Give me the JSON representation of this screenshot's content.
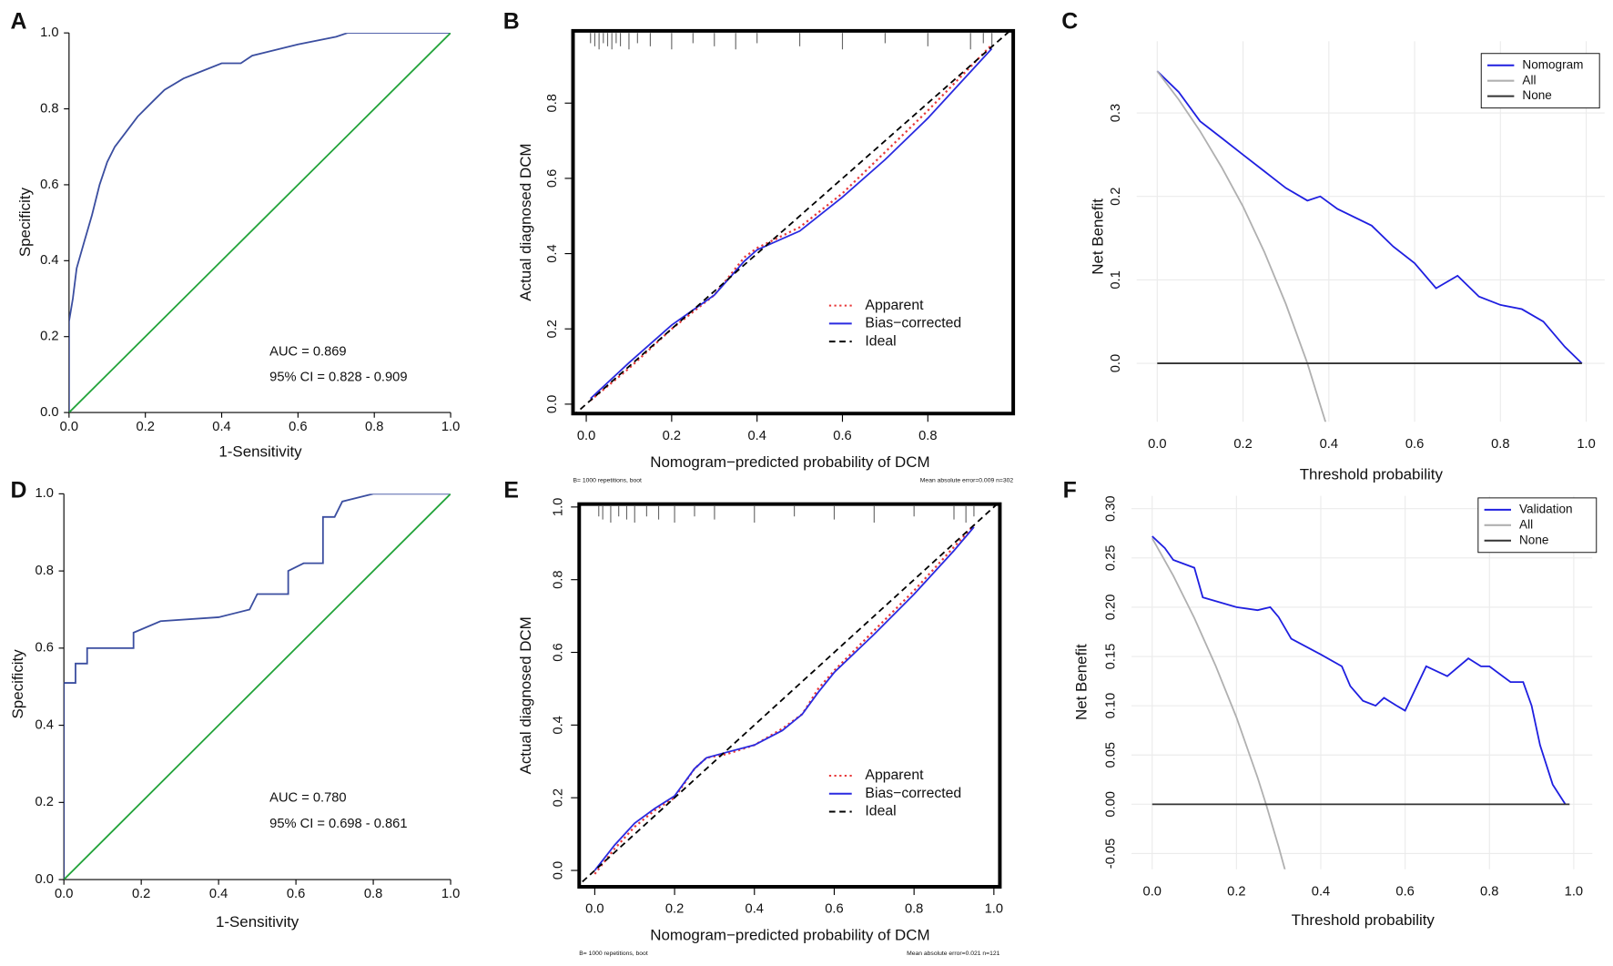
{
  "chart_data": [
    {
      "type": "roc",
      "label": "A",
      "x_label": "1-Sensitivity",
      "y_label": "Specificity",
      "annotations": [
        "AUC = 0.869",
        "95% CI = 0.828 - 0.909"
      ],
      "xlim": [
        0,
        1
      ],
      "ylim": [
        0,
        1
      ],
      "xticks": [
        {
          "value": 0,
          "label": "0.0"
        },
        0.2,
        0.4,
        0.6,
        0.8,
        {
          "value": 1,
          "label": "1.0"
        }
      ],
      "yticks": [
        {
          "value": 0,
          "label": "0.0"
        },
        0.2,
        0.4,
        0.6,
        0.8,
        {
          "value": 1,
          "label": "1.0"
        }
      ],
      "series": [
        {
          "color": "#3b4ea0",
          "style": "solid",
          "x": [
            0,
            0,
            0.01,
            0.02,
            0.04,
            0.06,
            0.08,
            0.1,
            0.12,
            0.15,
            0.18,
            0.22,
            0.25,
            0.3,
            0.35,
            0.4,
            0.45,
            0.48,
            0.52,
            0.6,
            0.7,
            0.73,
            1
          ],
          "values": [
            0,
            0.24,
            0.3,
            0.38,
            0.45,
            0.52,
            0.6,
            0.66,
            0.7,
            0.74,
            0.78,
            0.82,
            0.85,
            0.88,
            0.9,
            0.92,
            0.92,
            0.94,
            0.95,
            0.97,
            0.99,
            1,
            1
          ]
        },
        {
          "color": "#22a33a",
          "style": "solid",
          "x": [
            0,
            1
          ],
          "values": [
            0,
            1
          ]
        }
      ]
    },
    {
      "type": "calibration",
      "label": "B",
      "x_label": "Nomogram−predicted probability of DCM",
      "y_label": "Actual diagnosed DCM",
      "notes": [
        "B= 1000 repetitions, boot",
        "Mean absolute error=0.009 n=302"
      ],
      "xlim": [
        -0.031,
        1.0
      ],
      "ylim": [
        -0.025,
        0.992
      ],
      "xticks": [
        {
          "value": 0,
          "label": "0.0"
        },
        0.2,
        0.4,
        0.6,
        0.8
      ],
      "yticks": [
        {
          "value": 0,
          "label": "0.0"
        },
        0.2,
        0.4,
        0.6,
        0.8
      ],
      "rug": [
        0.01,
        0.02,
        0.03,
        0.04,
        0.05,
        0.06,
        0.07,
        0.08,
        0.1,
        0.12,
        0.15,
        0.2,
        0.25,
        0.3,
        0.35,
        0.4,
        0.5,
        0.6,
        0.7,
        0.8,
        0.9,
        0.93,
        0.95
      ],
      "series": [
        {
          "name": "Apparent",
          "color": "#e8393a",
          "style": "dotted",
          "x": [
            0.01,
            0.1,
            0.2,
            0.3,
            0.37,
            0.4,
            0.5,
            0.6,
            0.7,
            0.8,
            0.95
          ],
          "values": [
            0.01,
            0.095,
            0.2,
            0.29,
            0.39,
            0.415,
            0.47,
            0.56,
            0.67,
            0.78,
            0.955
          ]
        },
        {
          "name": "Bias−corrected",
          "color": "#2a2ae0",
          "style": "solid",
          "x": [
            0.01,
            0.1,
            0.2,
            0.3,
            0.37,
            0.4,
            0.5,
            0.6,
            0.7,
            0.8,
            0.95
          ],
          "values": [
            0.015,
            0.11,
            0.21,
            0.29,
            0.38,
            0.41,
            0.46,
            0.55,
            0.65,
            0.76,
            0.945
          ]
        },
        {
          "name": "Ideal",
          "color": "#000000",
          "style": "dashed",
          "x": [
            -0.05,
            1
          ],
          "values": [
            -0.05,
            1
          ]
        }
      ]
    },
    {
      "type": "decision",
      "label": "C",
      "x_label": "Threshold probability",
      "y_label": "Net Benefit",
      "grid": true,
      "legend": "top-right",
      "xlim": [
        -0.048,
        1.043
      ],
      "ylim": [
        -0.07,
        0.386
      ],
      "xticks": [
        {
          "value": 0,
          "label": "0.0"
        },
        0.2,
        0.4,
        0.6,
        0.8,
        {
          "value": 1,
          "label": "1.0"
        }
      ],
      "yticks": [
        {
          "value": 0,
          "label": "0.0"
        },
        0.1,
        0.2,
        0.3
      ],
      "series": [
        {
          "name": "Nomogram",
          "color": "#1f1fe0",
          "style": "solid",
          "x": [
            0,
            0.05,
            0.1,
            0.15,
            0.2,
            0.25,
            0.3,
            0.35,
            0.38,
            0.42,
            0.5,
            0.55,
            0.6,
            0.65,
            0.7,
            0.75,
            0.8,
            0.85,
            0.9,
            0.95,
            0.99
          ],
          "values": [
            0.35,
            0.325,
            0.29,
            0.27,
            0.25,
            0.23,
            0.21,
            0.195,
            0.2,
            0.185,
            0.165,
            0.14,
            0.12,
            0.09,
            0.105,
            0.08,
            0.07,
            0.065,
            0.05,
            0.02,
            0
          ]
        },
        {
          "name": "All",
          "color": "#b0b0b0",
          "style": "solid",
          "x": [
            0,
            0.05,
            0.1,
            0.15,
            0.2,
            0.25,
            0.3,
            0.35,
            0.4
          ],
          "values": [
            0.35,
            0.316,
            0.278,
            0.235,
            0.188,
            0.133,
            0.071,
            0,
            -0.083
          ]
        },
        {
          "name": "None",
          "color": "#333333",
          "style": "solid",
          "x": [
            0,
            0.99
          ],
          "values": [
            0,
            0
          ]
        }
      ]
    },
    {
      "type": "roc",
      "label": "D",
      "x_label": "1-Sensitivity",
      "y_label": "Specificity",
      "annotations": [
        "AUC = 0.780",
        "95% CI = 0.698 - 0.861"
      ],
      "xlim": [
        0,
        1
      ],
      "ylim": [
        0,
        1
      ],
      "xticks": [
        {
          "value": 0,
          "label": "0.0"
        },
        0.2,
        0.4,
        0.6,
        0.8,
        {
          "value": 1,
          "label": "1.0"
        }
      ],
      "yticks": [
        {
          "value": 0,
          "label": "0.0"
        },
        0.2,
        0.4,
        0.6,
        0.8,
        {
          "value": 1,
          "label": "1.0"
        }
      ],
      "series": [
        {
          "color": "#3b4ea0",
          "style": "solid",
          "x": [
            0,
            0,
            0.03,
            0.03,
            0.06,
            0.06,
            0.18,
            0.18,
            0.25,
            0.4,
            0.48,
            0.5,
            0.58,
            0.58,
            0.62,
            0.67,
            0.67,
            0.7,
            0.72,
            0.8,
            1
          ],
          "values": [
            0,
            0.51,
            0.51,
            0.56,
            0.56,
            0.6,
            0.6,
            0.64,
            0.67,
            0.68,
            0.7,
            0.74,
            0.74,
            0.8,
            0.82,
            0.82,
            0.94,
            0.94,
            0.98,
            1,
            1
          ]
        },
        {
          "color": "#22a33a",
          "style": "solid",
          "x": [
            0,
            1
          ],
          "values": [
            0,
            1
          ]
        }
      ]
    },
    {
      "type": "calibration",
      "label": "E",
      "x_label": "Nomogram−predicted probability of DCM",
      "y_label": "Actual diagnosed DCM",
      "notes": [
        "B= 1000 repetitions, boot",
        "Mean absolute error=0.021 n=121"
      ],
      "xlim": [
        -0.039,
        1.015
      ],
      "ylim": [
        -0.045,
        1.008
      ],
      "xticks": [
        {
          "value": 0,
          "label": "0.0"
        },
        0.2,
        0.4,
        0.6,
        0.8,
        {
          "value": 1,
          "label": "1.0"
        }
      ],
      "yticks": [
        {
          "value": 0,
          "label": "0.0"
        },
        0.2,
        0.4,
        0.6,
        0.8,
        {
          "value": 1,
          "label": "1.0"
        }
      ],
      "rug": [
        0.01,
        0.02,
        0.04,
        0.06,
        0.08,
        0.1,
        0.13,
        0.16,
        0.2,
        0.25,
        0.3,
        0.4,
        0.5,
        0.6,
        0.7,
        0.8,
        0.9,
        0.93,
        0.95
      ],
      "series": [
        {
          "name": "Apparent",
          "color": "#e8393a",
          "style": "dotted",
          "x": [
            0,
            0.05,
            0.1,
            0.15,
            0.2,
            0.25,
            0.28,
            0.33,
            0.4,
            0.47,
            0.52,
            0.56,
            0.6,
            0.7,
            0.8,
            0.9,
            0.95
          ],
          "values": [
            -0.01,
            0.06,
            0.12,
            0.165,
            0.2,
            0.28,
            0.31,
            0.32,
            0.345,
            0.39,
            0.43,
            0.5,
            0.55,
            0.66,
            0.77,
            0.89,
            0.95
          ]
        },
        {
          "name": "Bias−corrected",
          "color": "#2a2ae0",
          "style": "solid",
          "x": [
            0,
            0.05,
            0.1,
            0.15,
            0.2,
            0.25,
            0.28,
            0.33,
            0.4,
            0.47,
            0.52,
            0.56,
            0.6,
            0.7,
            0.8,
            0.9,
            0.95
          ],
          "values": [
            0,
            0.07,
            0.13,
            0.17,
            0.205,
            0.28,
            0.31,
            0.325,
            0.345,
            0.385,
            0.43,
            0.49,
            0.545,
            0.65,
            0.76,
            0.88,
            0.945
          ]
        },
        {
          "name": "Ideal",
          "color": "#000000",
          "style": "dashed",
          "x": [
            -0.05,
            1.02
          ],
          "values": [
            -0.05,
            1.02
          ]
        }
      ]
    },
    {
      "type": "decision",
      "label": "F",
      "x_label": "Threshold probability",
      "y_label": "Net Benefit",
      "grid": true,
      "legend": "top-right",
      "xlim": [
        -0.049,
        1.044
      ],
      "ylim": [
        -0.066,
        0.313
      ],
      "xticks": [
        {
          "value": 0,
          "label": "0.0"
        },
        0.2,
        0.4,
        0.6,
        0.8,
        {
          "value": 1,
          "label": "1.0"
        }
      ],
      "yticks": [
        -0.05,
        {
          "value": 0,
          "label": "0.00"
        },
        0.05,
        {
          "value": 0.1,
          "label": "0.10"
        },
        0.15,
        {
          "value": 0.2,
          "label": "0.20"
        },
        0.25,
        {
          "value": 0.3,
          "label": "0.30"
        }
      ],
      "series": [
        {
          "name": "Validation",
          "color": "#1f1fe0",
          "style": "solid",
          "x": [
            0,
            0.03,
            0.05,
            0.1,
            0.12,
            0.2,
            0.25,
            0.28,
            0.3,
            0.33,
            0.4,
            0.45,
            0.47,
            0.5,
            0.53,
            0.55,
            0.58,
            0.6,
            0.65,
            0.7,
            0.75,
            0.78,
            0.8,
            0.85,
            0.88,
            0.9,
            0.92,
            0.95,
            0.98
          ],
          "values": [
            0.272,
            0.26,
            0.248,
            0.24,
            0.21,
            0.2,
            0.197,
            0.2,
            0.19,
            0.168,
            0.152,
            0.14,
            0.12,
            0.105,
            0.1,
            0.108,
            0.1,
            0.095,
            0.14,
            0.13,
            0.148,
            0.14,
            0.14,
            0.124,
            0.124,
            0.1,
            0.06,
            0.02,
            0
          ]
        },
        {
          "name": "All",
          "color": "#b0b0b0",
          "style": "solid",
          "x": [
            0,
            0.05,
            0.1,
            0.15,
            0.2,
            0.25,
            0.27,
            0.3,
            0.32
          ],
          "values": [
            0.27,
            0.232,
            0.189,
            0.141,
            0.088,
            0.027,
            0,
            -0.043,
            -0.074
          ]
        },
        {
          "name": "None",
          "color": "#333333",
          "style": "solid",
          "x": [
            0,
            0.99
          ],
          "values": [
            0,
            0
          ]
        }
      ]
    }
  ]
}
